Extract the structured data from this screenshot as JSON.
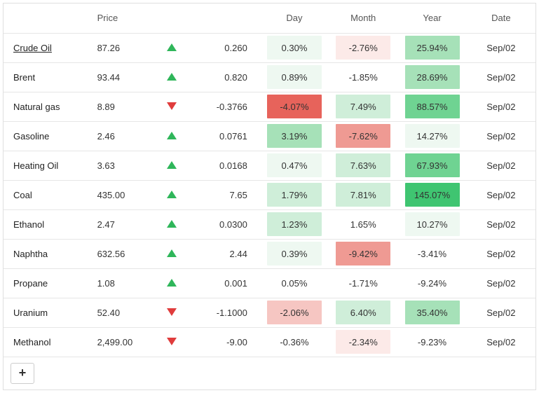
{
  "headers": {
    "name": "",
    "price": "Price",
    "arrow": "",
    "change": "",
    "day": "Day",
    "month": "Month",
    "year": "Year",
    "date": "Date"
  },
  "heatmap_colors": {
    "neg4": "#e7635b",
    "neg3": "#ef9a93",
    "neg2": "#f6c6c2",
    "neg1": "#fceae8",
    "neu": "#ffffff",
    "pos1": "#eef8f1",
    "pos2": "#cfeed9",
    "pos3": "#a6e1b8",
    "pos4": "#6fd392",
    "pos5": "#3fc571"
  },
  "rows": [
    {
      "name": "Crude Oil",
      "underline": true,
      "price": "87.26",
      "dir": "up",
      "change": "0.260",
      "day": "0.30%",
      "day_c": "pos1",
      "month": "-2.76%",
      "month_c": "neg1",
      "year": "25.94%",
      "year_c": "pos3",
      "date": "Sep/02"
    },
    {
      "name": "Brent",
      "underline": false,
      "price": "93.44",
      "dir": "up",
      "change": "0.820",
      "day": "0.89%",
      "day_c": "pos1",
      "month": "-1.85%",
      "month_c": "neu",
      "year": "28.69%",
      "year_c": "pos3",
      "date": "Sep/02"
    },
    {
      "name": "Natural gas",
      "underline": false,
      "price": "8.89",
      "dir": "down",
      "change": "-0.3766",
      "day": "-4.07%",
      "day_c": "neg4",
      "month": "7.49%",
      "month_c": "pos2",
      "year": "88.57%",
      "year_c": "pos4",
      "date": "Sep/02"
    },
    {
      "name": "Gasoline",
      "underline": false,
      "price": "2.46",
      "dir": "up",
      "change": "0.0761",
      "day": "3.19%",
      "day_c": "pos3",
      "month": "-7.62%",
      "month_c": "neg3",
      "year": "14.27%",
      "year_c": "pos1",
      "date": "Sep/02"
    },
    {
      "name": "Heating Oil",
      "underline": false,
      "price": "3.63",
      "dir": "up",
      "change": "0.0168",
      "day": "0.47%",
      "day_c": "pos1",
      "month": "7.63%",
      "month_c": "pos2",
      "year": "67.93%",
      "year_c": "pos4",
      "date": "Sep/02"
    },
    {
      "name": "Coal",
      "underline": false,
      "price": "435.00",
      "dir": "up",
      "change": "7.65",
      "day": "1.79%",
      "day_c": "pos2",
      "month": "7.81%",
      "month_c": "pos2",
      "year": "145.07%",
      "year_c": "pos5",
      "date": "Sep/02"
    },
    {
      "name": "Ethanol",
      "underline": false,
      "price": "2.47",
      "dir": "up",
      "change": "0.0300",
      "day": "1.23%",
      "day_c": "pos2",
      "month": "1.65%",
      "month_c": "neu",
      "year": "10.27%",
      "year_c": "pos1",
      "date": "Sep/02"
    },
    {
      "name": "Naphtha",
      "underline": false,
      "price": "632.56",
      "dir": "up",
      "change": "2.44",
      "day": "0.39%",
      "day_c": "pos1",
      "month": "-9.42%",
      "month_c": "neg3",
      "year": "-3.41%",
      "year_c": "neu",
      "date": "Sep/02"
    },
    {
      "name": "Propane",
      "underline": false,
      "price": "1.08",
      "dir": "up",
      "change": "0.001",
      "day": "0.05%",
      "day_c": "neu",
      "month": "-1.71%",
      "month_c": "neu",
      "year": "-9.24%",
      "year_c": "neu",
      "date": "Sep/02"
    },
    {
      "name": "Uranium",
      "underline": false,
      "price": "52.40",
      "dir": "down",
      "change": "-1.1000",
      "day": "-2.06%",
      "day_c": "neg2",
      "month": "6.40%",
      "month_c": "pos2",
      "year": "35.40%",
      "year_c": "pos3",
      "date": "Sep/02"
    },
    {
      "name": "Methanol",
      "underline": false,
      "price": "2,499.00",
      "dir": "down",
      "change": "-9.00",
      "day": "-0.36%",
      "day_c": "neu",
      "month": "-2.34%",
      "month_c": "neg1",
      "year": "-9.23%",
      "year_c": "neu",
      "date": "Sep/02"
    }
  ],
  "add_button_label": "+"
}
